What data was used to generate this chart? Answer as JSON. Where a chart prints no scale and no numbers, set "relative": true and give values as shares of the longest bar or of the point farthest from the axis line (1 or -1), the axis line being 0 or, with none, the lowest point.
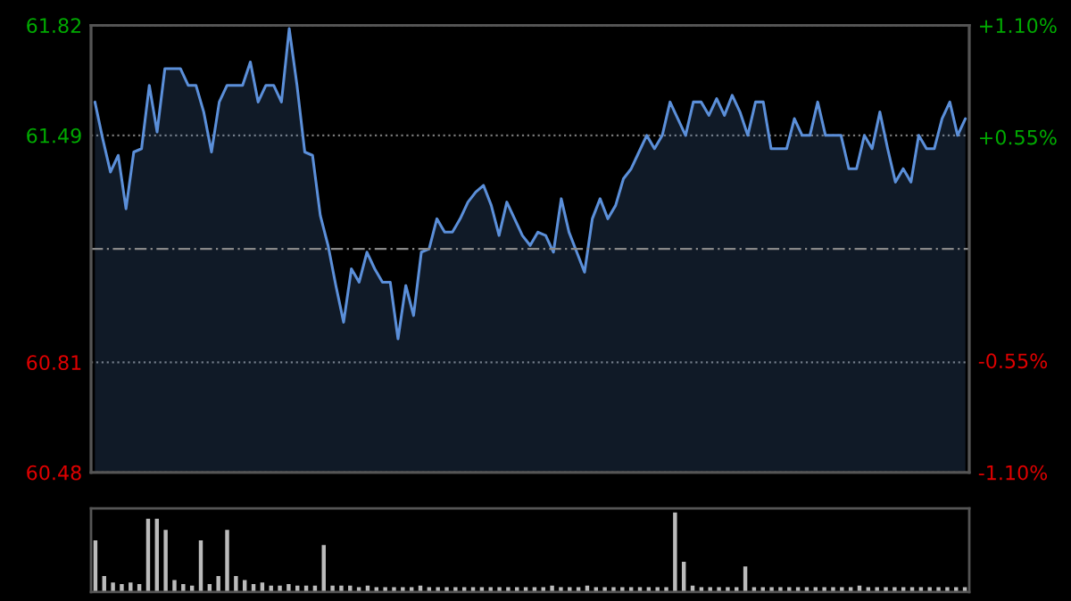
{
  "chart_data": [
    {
      "type": "area",
      "categories": [
        null,
        null,
        null,
        null,
        null,
        null,
        null,
        null,
        null,
        null,
        null,
        null,
        null,
        null,
        null,
        null,
        null,
        null,
        null,
        null,
        null,
        null,
        null,
        null,
        null,
        null,
        null,
        null,
        null,
        null,
        null,
        null,
        null,
        null,
        null,
        null,
        null,
        null,
        null,
        null,
        null,
        null,
        null,
        null,
        null,
        null,
        null,
        null,
        null,
        null,
        null,
        null,
        null,
        null,
        null,
        null,
        null,
        null,
        null,
        null,
        null,
        null,
        null,
        null,
        null,
        null,
        null,
        null,
        null,
        null,
        null,
        null,
        null,
        null,
        null,
        null,
        null,
        null,
        null,
        null,
        null,
        null,
        null,
        null,
        null,
        null,
        null,
        null,
        null,
        null,
        null,
        null,
        null,
        null,
        null,
        null,
        null,
        null,
        null,
        null,
        null,
        null,
        null,
        null,
        null,
        null,
        null,
        null,
        null,
        null,
        null,
        null,
        null
      ],
      "series": [
        {
          "color": "#5b8fd9",
          "values": [
            61.59,
            61.48,
            61.38,
            61.43,
            61.27,
            61.44,
            61.45,
            61.64,
            61.5,
            61.69,
            61.69,
            61.69,
            61.64,
            61.64,
            61.56,
            61.44,
            61.59,
            61.64,
            61.64,
            61.64,
            61.71,
            61.59,
            61.64,
            61.64,
            61.59,
            61.81,
            61.64,
            61.44,
            61.43,
            61.25,
            61.16,
            61.04,
            60.93,
            61.09,
            61.05,
            61.14,
            61.09,
            61.05,
            61.05,
            60.88,
            61.04,
            60.95,
            61.14,
            61.15,
            61.24,
            61.2,
            61.2,
            61.24,
            61.29,
            61.32,
            61.34,
            61.28,
            61.19,
            61.29,
            61.24,
            61.19,
            61.16,
            61.2,
            61.19,
            61.14,
            61.3,
            61.2,
            61.14,
            61.08,
            61.24,
            61.3,
            61.24,
            61.28,
            61.36,
            61.39,
            61.44,
            61.49,
            61.45,
            61.49,
            61.59,
            61.54,
            61.49,
            61.59,
            61.59,
            61.55,
            61.6,
            61.55,
            61.61,
            61.56,
            61.49,
            61.59,
            61.59,
            61.45,
            61.45,
            61.45,
            61.54,
            61.49,
            61.49,
            61.59,
            61.49,
            61.49,
            61.49,
            61.39,
            61.39,
            61.49,
            61.45,
            61.56,
            61.45,
            61.35,
            61.39,
            61.35,
            61.49,
            61.45,
            61.45,
            61.54,
            61.59,
            61.49,
            61.54
          ]
        }
      ],
      "ylim": [
        60.48,
        61.82
      ],
      "yticks": [
        60.48,
        60.81,
        61.49,
        61.82
      ],
      "y2lim": [
        -1.1,
        1.1
      ],
      "y2ticks": [
        {
          "value": -1.1,
          "label": "-1.10%"
        },
        {
          "value": -0.55,
          "label": "-0.55%"
        },
        {
          "value": 0.55,
          "label": "+0.55%"
        },
        {
          "value": 1.1,
          "label": "+1.10%"
        }
      ],
      "ref_lines": [
        {
          "axis": "y",
          "value": 61.15,
          "label": null,
          "line_style": "dashed"
        }
      ],
      "grid": "y"
    },
    {
      "type": "bar",
      "relative": true,
      "color": "#bbbbbb",
      "categories": [
        null,
        null,
        null,
        null,
        null,
        null,
        null,
        null,
        null,
        null,
        null,
        null,
        null,
        null,
        null,
        null,
        null,
        null,
        null,
        null,
        null,
        null,
        null,
        null,
        null,
        null,
        null,
        null,
        null,
        null,
        null,
        null,
        null,
        null,
        null,
        null,
        null,
        null,
        null,
        null,
        null,
        null,
        null,
        null,
        null,
        null,
        null,
        null,
        null,
        null,
        null,
        null,
        null,
        null,
        null,
        null,
        null,
        null,
        null,
        null,
        null,
        null,
        null,
        null,
        null,
        null,
        null,
        null,
        null,
        null,
        null,
        null,
        null,
        null,
        null,
        null,
        null,
        null,
        null,
        null,
        null,
        null,
        null,
        null,
        null,
        null,
        null,
        null,
        null,
        null,
        null,
        null,
        null,
        null,
        null,
        null,
        null,
        null,
        null,
        null
      ],
      "values": [
        0.65,
        0.2,
        0.12,
        0.1,
        0.12,
        0.1,
        0.92,
        0.92,
        0.78,
        0.15,
        0.1,
        0.08,
        0.65,
        0.1,
        0.2,
        0.78,
        0.2,
        0.15,
        0.1,
        0.12,
        0.08,
        0.08,
        0.1,
        0.08,
        0.08,
        0.08,
        0.59,
        0.08,
        0.08,
        0.08,
        0.06,
        0.08,
        0.06,
        0.06,
        0.06,
        0.06,
        0.06,
        0.08,
        0.06,
        0.06,
        0.06,
        0.06,
        0.06,
        0.06,
        0.06,
        0.06,
        0.06,
        0.06,
        0.06,
        0.06,
        0.06,
        0.06,
        0.08,
        0.06,
        0.06,
        0.06,
        0.08,
        0.06,
        0.06,
        0.06,
        0.06,
        0.06,
        0.06,
        0.06,
        0.06,
        0.06,
        1.0,
        0.38,
        0.08,
        0.06,
        0.06,
        0.06,
        0.06,
        0.06,
        0.32,
        0.06,
        0.06,
        0.06,
        0.06,
        0.06,
        0.06,
        0.06,
        0.06,
        0.06,
        0.06,
        0.06,
        0.06,
        0.08,
        0.06,
        0.06,
        0.06,
        0.06,
        0.06,
        0.06,
        0.06,
        0.06,
        0.06,
        0.06,
        0.06,
        0.06
      ]
    }
  ]
}
